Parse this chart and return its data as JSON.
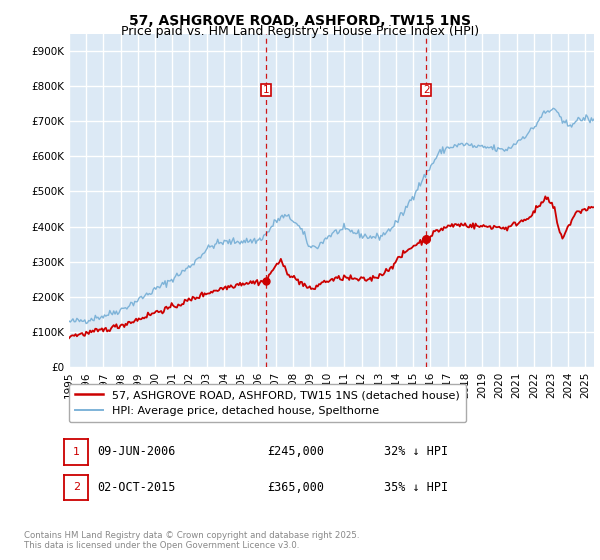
{
  "title": "57, ASHGROVE ROAD, ASHFORD, TW15 1NS",
  "subtitle": "Price paid vs. HM Land Registry's House Price Index (HPI)",
  "ylim": [
    0,
    950000
  ],
  "yticks": [
    0,
    100000,
    200000,
    300000,
    400000,
    500000,
    600000,
    700000,
    800000,
    900000
  ],
  "ytick_labels": [
    "£0",
    "£100K",
    "£200K",
    "£300K",
    "£400K",
    "£500K",
    "£600K",
    "£700K",
    "£800K",
    "£900K"
  ],
  "xlim_start": 1995.0,
  "xlim_end": 2025.5,
  "plot_bg_color": "#dce9f5",
  "grid_color": "#ffffff",
  "line1_color": "#cc0000",
  "line2_color": "#7eb3d8",
  "line1_label": "57, ASHGROVE ROAD, ASHFORD, TW15 1NS (detached house)",
  "line2_label": "HPI: Average price, detached house, Spelthorne",
  "sale1_date": "09-JUN-2006",
  "sale1_price": "£245,000",
  "sale1_hpi": "32% ↓ HPI",
  "sale1_x": 2006.44,
  "sale1_y": 245000,
  "sale2_date": "02-OCT-2015",
  "sale2_price": "£365,000",
  "sale2_hpi": "35% ↓ HPI",
  "sale2_x": 2015.75,
  "sale2_y": 365000,
  "footer": "Contains HM Land Registry data © Crown copyright and database right 2025.\nThis data is licensed under the Open Government Licence v3.0.",
  "title_fontsize": 10,
  "subtitle_fontsize": 9,
  "tick_fontsize": 7.5,
  "legend_fontsize": 8,
  "annot_fontsize": 8.5
}
